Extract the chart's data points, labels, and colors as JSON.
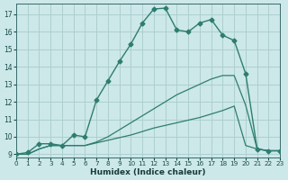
{
  "xlabel": "Humidex (Indice chaleur)",
  "bg_color": "#cce8e8",
  "line_color": "#2e7d6e",
  "grid_color": "#aacccc",
  "series": [
    {
      "x": [
        0,
        1,
        2,
        3,
        4,
        5,
        6,
        7,
        8,
        9,
        10,
        11,
        12,
        13,
        14,
        15,
        16,
        17,
        18,
        19,
        20,
        21,
        22,
        23
      ],
      "y": [
        9,
        9.1,
        9.6,
        9.6,
        9.5,
        10.1,
        10.0,
        12.1,
        13.2,
        14.3,
        15.3,
        16.5,
        17.3,
        17.35,
        16.1,
        16.0,
        16.5,
        16.7,
        15.8,
        15.5,
        13.6,
        9.3,
        9.2,
        9.2
      ],
      "marker": "D",
      "markersize": 2.5,
      "linewidth": 1.0
    },
    {
      "x": [
        0,
        1,
        2,
        3,
        4,
        5,
        6,
        7,
        8,
        9,
        10,
        11,
        12,
        13,
        14,
        15,
        16,
        17,
        18,
        19,
        20,
        21,
        22,
        23
      ],
      "y": [
        9,
        9,
        9.3,
        9.5,
        9.5,
        9.5,
        9.5,
        9.7,
        10.0,
        10.4,
        10.8,
        11.2,
        11.6,
        12.0,
        12.4,
        12.7,
        13.0,
        13.3,
        13.5,
        13.5,
        11.8,
        9.3,
        9.2,
        9.2
      ],
      "marker": null,
      "linewidth": 0.9
    },
    {
      "x": [
        0,
        1,
        2,
        3,
        4,
        5,
        6,
        7,
        8,
        9,
        10,
        11,
        12,
        13,
        14,
        15,
        16,
        17,
        18,
        19,
        20,
        21,
        22,
        23
      ],
      "y": [
        9,
        9,
        9.3,
        9.5,
        9.5,
        9.5,
        9.5,
        9.65,
        9.8,
        9.95,
        10.1,
        10.3,
        10.5,
        10.65,
        10.8,
        10.95,
        11.1,
        11.3,
        11.5,
        11.75,
        9.5,
        9.3,
        9.2,
        9.2
      ],
      "marker": null,
      "linewidth": 0.9
    }
  ],
  "xlim": [
    0,
    23
  ],
  "ylim": [
    8.8,
    17.6
  ],
  "yticks": [
    9,
    10,
    11,
    12,
    13,
    14,
    15,
    16,
    17
  ],
  "xticks": [
    0,
    1,
    2,
    3,
    4,
    5,
    6,
    7,
    8,
    9,
    10,
    11,
    12,
    13,
    14,
    15,
    16,
    17,
    18,
    19,
    20,
    21,
    22,
    23
  ],
  "xtick_labels": [
    "0",
    "1",
    "2",
    "3",
    "4",
    "5",
    "6",
    "7",
    "8",
    "9",
    "10",
    "11",
    "12",
    "13",
    "14",
    "15",
    "16",
    "17",
    "18",
    "19",
    "20",
    "21",
    "22",
    "23"
  ]
}
